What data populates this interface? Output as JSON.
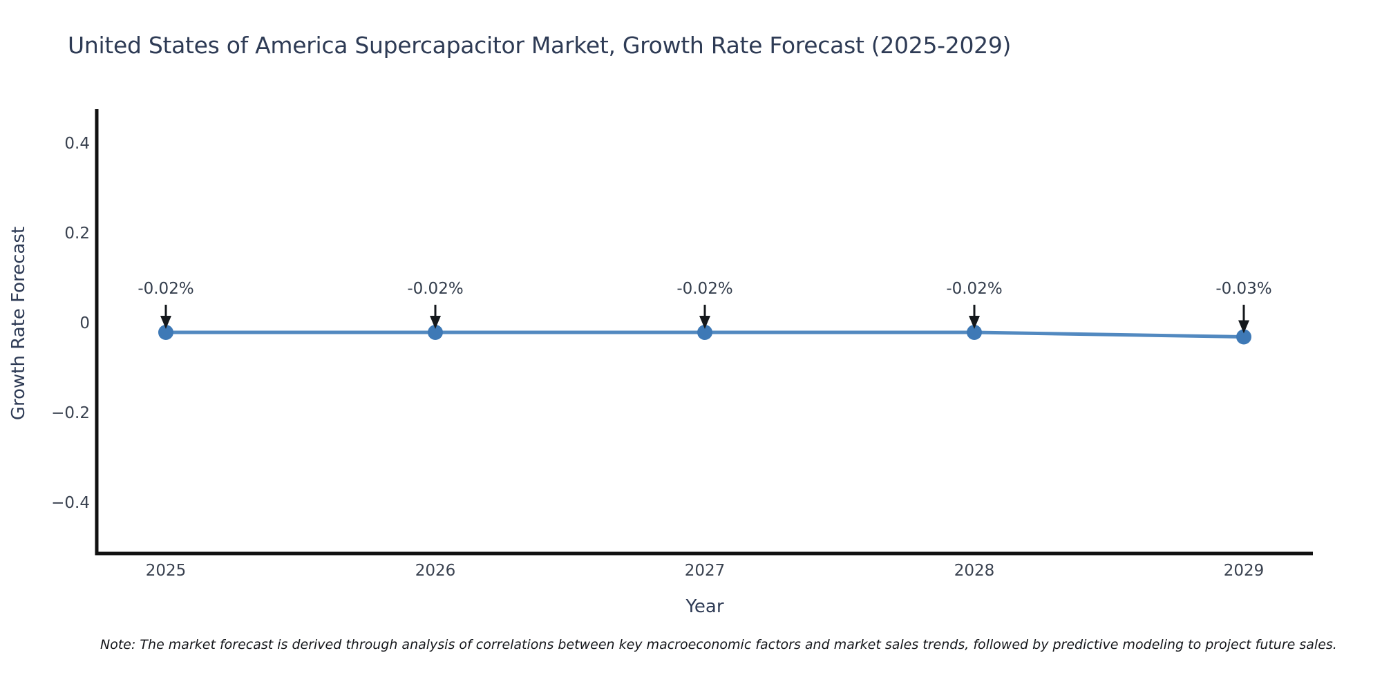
{
  "chart_data": {
    "type": "line",
    "title": "United States of America Supercapacitor Market, Growth Rate Forecast (2025-2029)",
    "xlabel": "Year",
    "ylabel": "Growth Rate Forecast",
    "x": [
      2025,
      2026,
      2027,
      2028,
      2029
    ],
    "series": [
      {
        "name": "Growth Rate Forecast",
        "values": [
          -0.02,
          -0.02,
          -0.02,
          -0.02,
          -0.03
        ]
      }
    ],
    "point_labels": [
      "-0.02%",
      "-0.02%",
      "-0.02%",
      "-0.02%",
      "-0.03%"
    ],
    "xtick_labels": [
      "2025",
      "2026",
      "2027",
      "2028",
      "2029"
    ],
    "ytick_labels": [
      "0.4",
      "0.2",
      "0",
      "−0.2",
      "−0.4"
    ],
    "ytick_values": [
      0.4,
      0.2,
      0,
      -0.2,
      -0.4
    ],
    "ylim": [
      -0.53,
      0.47
    ],
    "grid": false,
    "legend_position": "none",
    "colors": {
      "line": "#5289c0",
      "marker": "#3e79b6",
      "axis": "#111111",
      "arrow": "#14181c",
      "title_text": "#2e3b55",
      "tick_text": "#39414f"
    },
    "note": "Note: The market forecast is derived through analysis of correlations between key macroeconomic factors and market sales trends, followed by predictive modeling to project future sales."
  }
}
